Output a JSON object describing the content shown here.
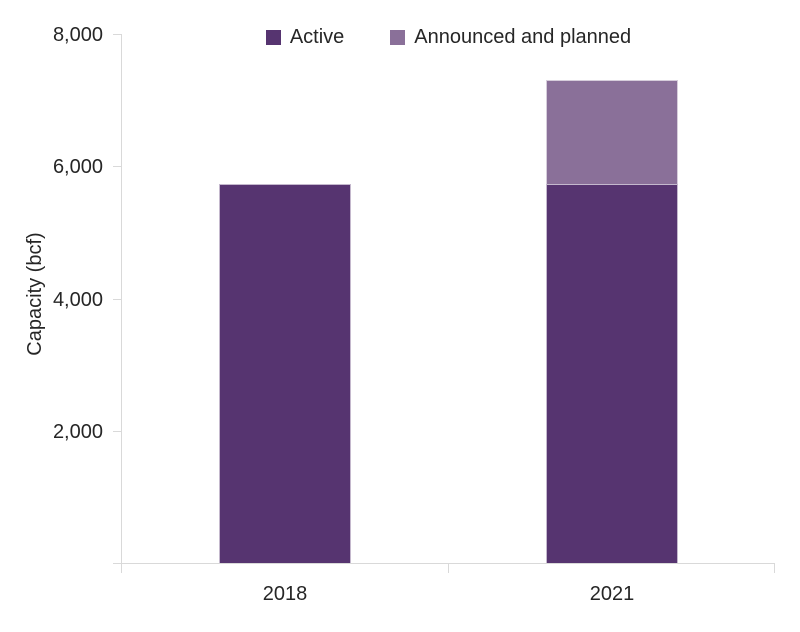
{
  "chart_data": {
    "type": "bar",
    "stacked": true,
    "title": "",
    "categories": [
      "2018",
      "2021"
    ],
    "series": [
      {
        "name": "Active",
        "color": "#563470",
        "values": [
          5730,
          5730
        ]
      },
      {
        "name": "Announced and planned",
        "color": "#8A7099",
        "values": [
          0,
          1570
        ]
      }
    ],
    "xlabel": "",
    "ylabel": "Capacity (bcf)",
    "ylim": [
      0,
      8000
    ],
    "ytick_interval": 2000,
    "ytick_labels": [
      "2,000",
      "4,000",
      "6,000",
      "8,000"
    ],
    "legend_position": "top-center",
    "grid": false,
    "totals": {
      "2018": 5730,
      "2021": 7300
    }
  },
  "colors": {
    "background": "#ffffff",
    "axis": "#d9d9d9",
    "text": "#262626",
    "active": "#563470",
    "announced_planned": "#8A7099",
    "bar_border": "rgba(255,255,255,0.65)"
  }
}
